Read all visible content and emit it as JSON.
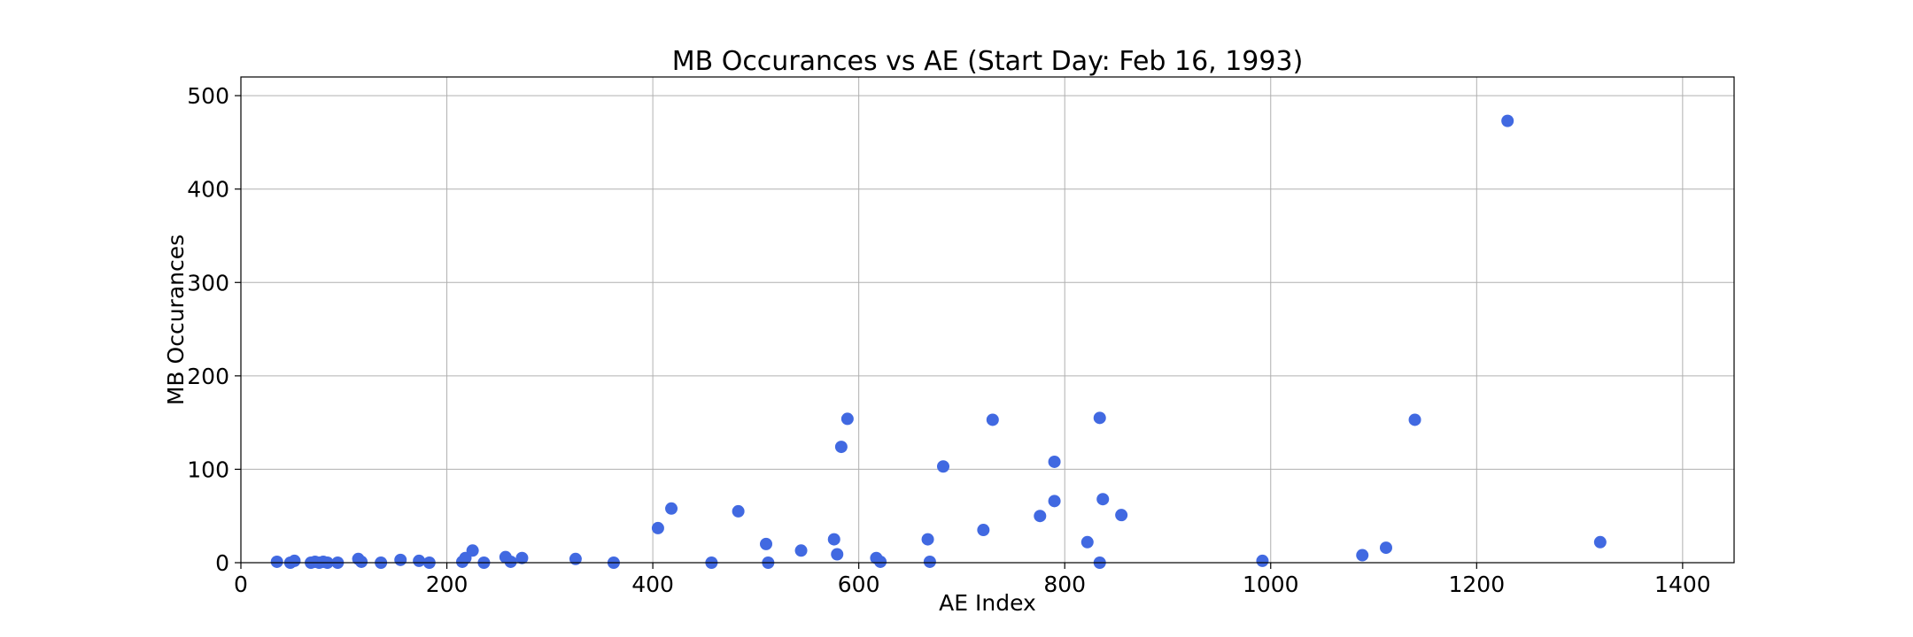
{
  "chart_data": {
    "type": "scatter",
    "title": "MB Occurances vs AE (Start Day: Feb 16, 1993)",
    "xlabel": "AE Index",
    "ylabel": "MB Occurances",
    "xlim": [
      0,
      1450
    ],
    "ylim": [
      0,
      520
    ],
    "xticks": [
      0,
      200,
      400,
      600,
      800,
      1000,
      1200,
      1400
    ],
    "yticks": [
      0,
      100,
      200,
      300,
      400,
      500
    ],
    "grid": true,
    "marker_color": "#4169e1",
    "points": [
      {
        "x": 35,
        "y": 1
      },
      {
        "x": 48,
        "y": 0
      },
      {
        "x": 52,
        "y": 2
      },
      {
        "x": 68,
        "y": 0
      },
      {
        "x": 72,
        "y": 1
      },
      {
        "x": 76,
        "y": 0
      },
      {
        "x": 80,
        "y": 1
      },
      {
        "x": 84,
        "y": 0
      },
      {
        "x": 94,
        "y": 0
      },
      {
        "x": 114,
        "y": 4
      },
      {
        "x": 117,
        "y": 1
      },
      {
        "x": 136,
        "y": 0
      },
      {
        "x": 155,
        "y": 3
      },
      {
        "x": 173,
        "y": 2
      },
      {
        "x": 183,
        "y": 0
      },
      {
        "x": 215,
        "y": 1
      },
      {
        "x": 218,
        "y": 5
      },
      {
        "x": 225,
        "y": 13
      },
      {
        "x": 236,
        "y": 0
      },
      {
        "x": 257,
        "y": 6
      },
      {
        "x": 262,
        "y": 1
      },
      {
        "x": 273,
        "y": 5
      },
      {
        "x": 325,
        "y": 4
      },
      {
        "x": 362,
        "y": 0
      },
      {
        "x": 405,
        "y": 37
      },
      {
        "x": 418,
        "y": 58
      },
      {
        "x": 457,
        "y": 0
      },
      {
        "x": 483,
        "y": 55
      },
      {
        "x": 510,
        "y": 20
      },
      {
        "x": 512,
        "y": 0
      },
      {
        "x": 544,
        "y": 13
      },
      {
        "x": 576,
        "y": 25
      },
      {
        "x": 579,
        "y": 9
      },
      {
        "x": 583,
        "y": 124
      },
      {
        "x": 589,
        "y": 154
      },
      {
        "x": 617,
        "y": 5
      },
      {
        "x": 621,
        "y": 1
      },
      {
        "x": 667,
        "y": 25
      },
      {
        "x": 669,
        "y": 1
      },
      {
        "x": 682,
        "y": 103
      },
      {
        "x": 721,
        "y": 35
      },
      {
        "x": 730,
        "y": 153
      },
      {
        "x": 776,
        "y": 50
      },
      {
        "x": 790,
        "y": 108
      },
      {
        "x": 790,
        "y": 66
      },
      {
        "x": 822,
        "y": 22
      },
      {
        "x": 834,
        "y": 155
      },
      {
        "x": 834,
        "y": 0
      },
      {
        "x": 837,
        "y": 68
      },
      {
        "x": 855,
        "y": 51
      },
      {
        "x": 992,
        "y": 2
      },
      {
        "x": 1089,
        "y": 8
      },
      {
        "x": 1112,
        "y": 16
      },
      {
        "x": 1140,
        "y": 153
      },
      {
        "x": 1230,
        "y": 473
      },
      {
        "x": 1320,
        "y": 22
      }
    ]
  }
}
